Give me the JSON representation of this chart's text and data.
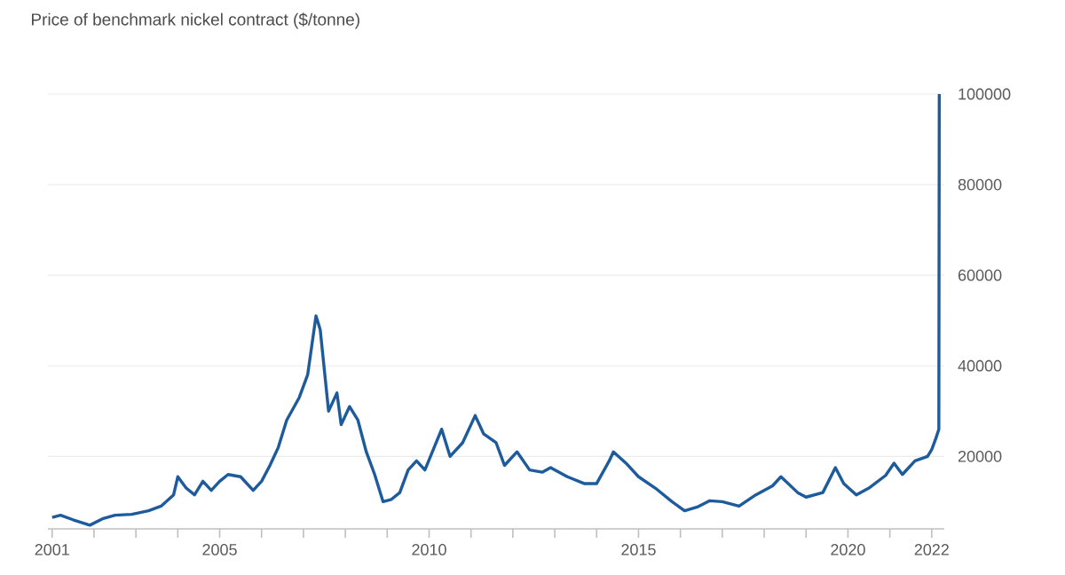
{
  "chart_data": {
    "type": "line",
    "title": "Price of benchmark nickel contract ($/tonne)",
    "x": [
      2001.0,
      2001.2,
      2001.5,
      2001.9,
      2002.2,
      2002.5,
      2002.9,
      2003.3,
      2003.6,
      2003.9,
      2004.0,
      2004.2,
      2004.4,
      2004.6,
      2004.8,
      2005.0,
      2005.2,
      2005.5,
      2005.8,
      2006.0,
      2006.2,
      2006.4,
      2006.6,
      2006.9,
      2007.1,
      2007.3,
      2007.4,
      2007.6,
      2007.8,
      2007.9,
      2008.1,
      2008.3,
      2008.5,
      2008.7,
      2008.9,
      2009.1,
      2009.3,
      2009.5,
      2009.7,
      2009.9,
      2010.3,
      2010.5,
      2010.8,
      2011.1,
      2011.3,
      2011.6,
      2011.8,
      2012.1,
      2012.4,
      2012.7,
      2012.9,
      2013.3,
      2013.7,
      2014.0,
      2014.3,
      2014.4,
      2014.7,
      2015.0,
      2015.4,
      2015.8,
      2016.1,
      2016.4,
      2016.7,
      2017.0,
      2017.4,
      2017.8,
      2018.2,
      2018.4,
      2018.8,
      2019.0,
      2019.4,
      2019.7,
      2019.9,
      2020.2,
      2020.5,
      2020.9,
      2021.1,
      2021.3,
      2021.6,
      2021.9,
      2022.0,
      2022.1,
      2022.17,
      2022.18
    ],
    "series": [
      {
        "color": "#1e5b9c",
        "values": [
          6500,
          7000,
          6000,
          4800,
          6200,
          7000,
          7200,
          8000,
          9000,
          11500,
          15500,
          13000,
          11500,
          14500,
          12500,
          14500,
          16000,
          15500,
          12500,
          14500,
          18000,
          22000,
          28000,
          33000,
          38000,
          51000,
          48000,
          30000,
          34000,
          27000,
          31000,
          28000,
          21000,
          16000,
          10000,
          10500,
          12000,
          17000,
          19000,
          17000,
          26000,
          20000,
          23000,
          29000,
          25000,
          23000,
          18000,
          21000,
          17000,
          16500,
          17500,
          15500,
          14000,
          14000,
          19000,
          21000,
          18500,
          15500,
          13000,
          10000,
          8000,
          8800,
          10200,
          10000,
          9000,
          11500,
          13500,
          15500,
          12000,
          11000,
          12000,
          17500,
          14000,
          11500,
          13000,
          15800,
          18500,
          16000,
          19000,
          20000,
          21500,
          24000,
          26000,
          100000
        ]
      }
    ],
    "xlim": [
      2000.9,
      2022.3
    ],
    "ylim": [
      4000,
      100000
    ],
    "xticks": [
      2001,
      {
        "value": 2002,
        "label": null
      },
      {
        "value": 2003,
        "label": null
      },
      {
        "value": 2004,
        "label": null
      },
      2005,
      {
        "value": 2006,
        "label": null
      },
      {
        "value": 2007,
        "label": null
      },
      {
        "value": 2008,
        "label": null
      },
      {
        "value": 2009,
        "label": null
      },
      2010,
      {
        "value": 2011,
        "label": null
      },
      {
        "value": 2012,
        "label": null
      },
      {
        "value": 2013,
        "label": null
      },
      {
        "value": 2014,
        "label": null
      },
      2015,
      {
        "value": 2016,
        "label": null
      },
      {
        "value": 2017,
        "label": null
      },
      {
        "value": 2018,
        "label": null
      },
      {
        "value": 2019,
        "label": null
      },
      2020,
      {
        "value": 2021,
        "label": null
      },
      2022
    ],
    "yticks": [
      20000,
      40000,
      60000,
      80000,
      100000
    ],
    "grid": "y",
    "marker": "none",
    "line_style": "solid"
  }
}
